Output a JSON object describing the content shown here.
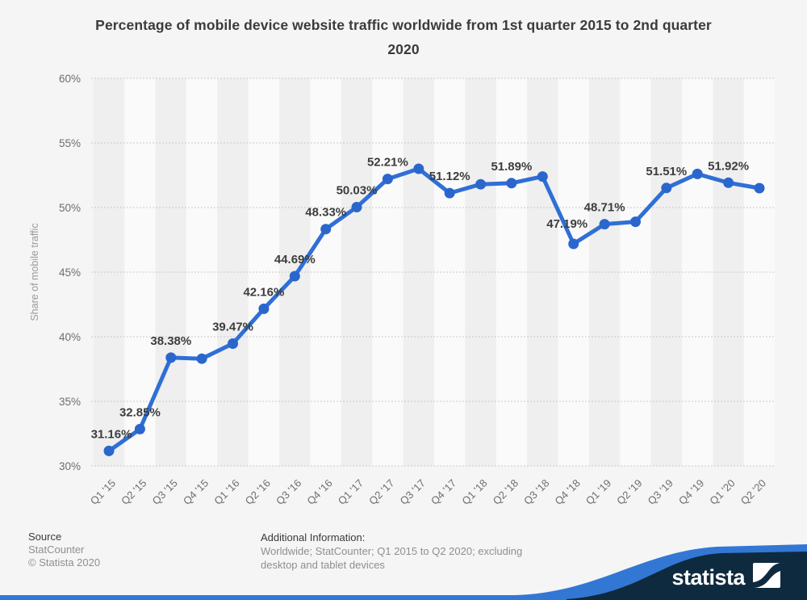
{
  "title": "Percentage of mobile device website traffic worldwide from 1st quarter 2015 to 2nd quarter 2020",
  "chart_data": {
    "type": "line",
    "x": [
      "Q1 '15",
      "Q2 '15",
      "Q3 '15",
      "Q4 '15",
      "Q1 '16",
      "Q2 '16",
      "Q3 '16",
      "Q4 '16",
      "Q1 '17",
      "Q2 '17",
      "Q3 '17",
      "Q4 '17",
      "Q1 '18",
      "Q2 '18",
      "Q3 '18",
      "Q4 '18",
      "Q1 '19",
      "Q2 '19",
      "Q3 '19",
      "Q4 '19",
      "Q1 '20",
      "Q2 '20"
    ],
    "series": [
      {
        "name": "Share of mobile traffic",
        "values": [
          31.16,
          32.85,
          38.38,
          38.3,
          39.47,
          42.16,
          44.69,
          48.33,
          50.03,
          52.21,
          53.0,
          51.12,
          51.8,
          51.89,
          52.4,
          47.19,
          48.71,
          48.9,
          51.51,
          52.6,
          51.92,
          51.5
        ]
      }
    ],
    "data_labels": [
      "31.16%",
      "32.85%",
      "38.38%",
      null,
      "39.47%",
      "42.16%",
      "44.69%",
      "48.33%",
      "50.03%",
      "52.21%",
      null,
      "51.12%",
      null,
      "51.89%",
      null,
      "47.19%",
      "48.71%",
      null,
      "51.51%",
      null,
      "51.92%",
      null
    ],
    "xlabel": "",
    "ylabel": "Share of mobile traffic",
    "ylim": [
      30,
      60
    ],
    "ytick_step": 5,
    "yticks": [
      "30%",
      "35%",
      "40%",
      "45%",
      "50%",
      "55%",
      "60%"
    ],
    "grid": "horizontal-dotted",
    "legend_position": "none",
    "line_color": "#2f6fd6",
    "point_color": "#2a66cc",
    "label_color": "#3d3d3d",
    "tick_color": "#6e6e6e",
    "axis_title_color": "#9b9b9b",
    "gridline_color": "#c9c9c9",
    "stripe_dark": "#efefef",
    "stripe_light": "#fafafa"
  },
  "footer": {
    "source_heading": "Source",
    "source_lines": [
      "StatCounter",
      "© Statista 2020"
    ],
    "additional_heading": "Additional Information:",
    "additional_text": "Worldwide; StatCounter; Q1 2015 to Q2 2020; excluding desktop and tablet devices"
  },
  "branding": {
    "logo_text": "statista",
    "navy": "#0e2a3e",
    "blue": "#3377d4"
  }
}
